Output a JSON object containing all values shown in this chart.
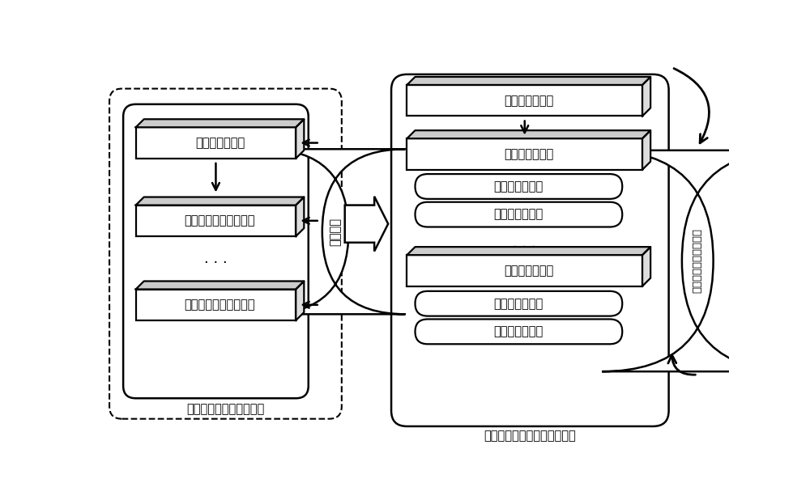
{
  "bg_color": "#ffffff",
  "left_module_label": "可分离三维残差网络模块",
  "right_module_label": "可分离三维残差注意网络模块",
  "right_side_label": "人体动作识别结果输出",
  "left_blocks_3d": [
    "可分离三维卷积",
    "可分离三维卷积残差块",
    "可分离三维卷积残差块"
  ],
  "right_top_block_3d": "可分离三维卷积",
  "right_group1_blocks": [
    "可分离三维卷积",
    "通道注意力模块",
    "空间注意力模块"
  ],
  "right_group2_blocks": [
    "可分离三维卷积",
    "通道注意力模块",
    "空间注意力模块"
  ],
  "left_connector_label": "参数共享",
  "figsize": [
    10.0,
    6.18
  ],
  "dpi": 100,
  "xlim": [
    0,
    10
  ],
  "ylim": [
    0,
    6.18
  ],
  "fontsize_main": 10.5,
  "fontsize_label": 10.5,
  "block_3d_depth": 0.13,
  "block_lw": 1.6
}
